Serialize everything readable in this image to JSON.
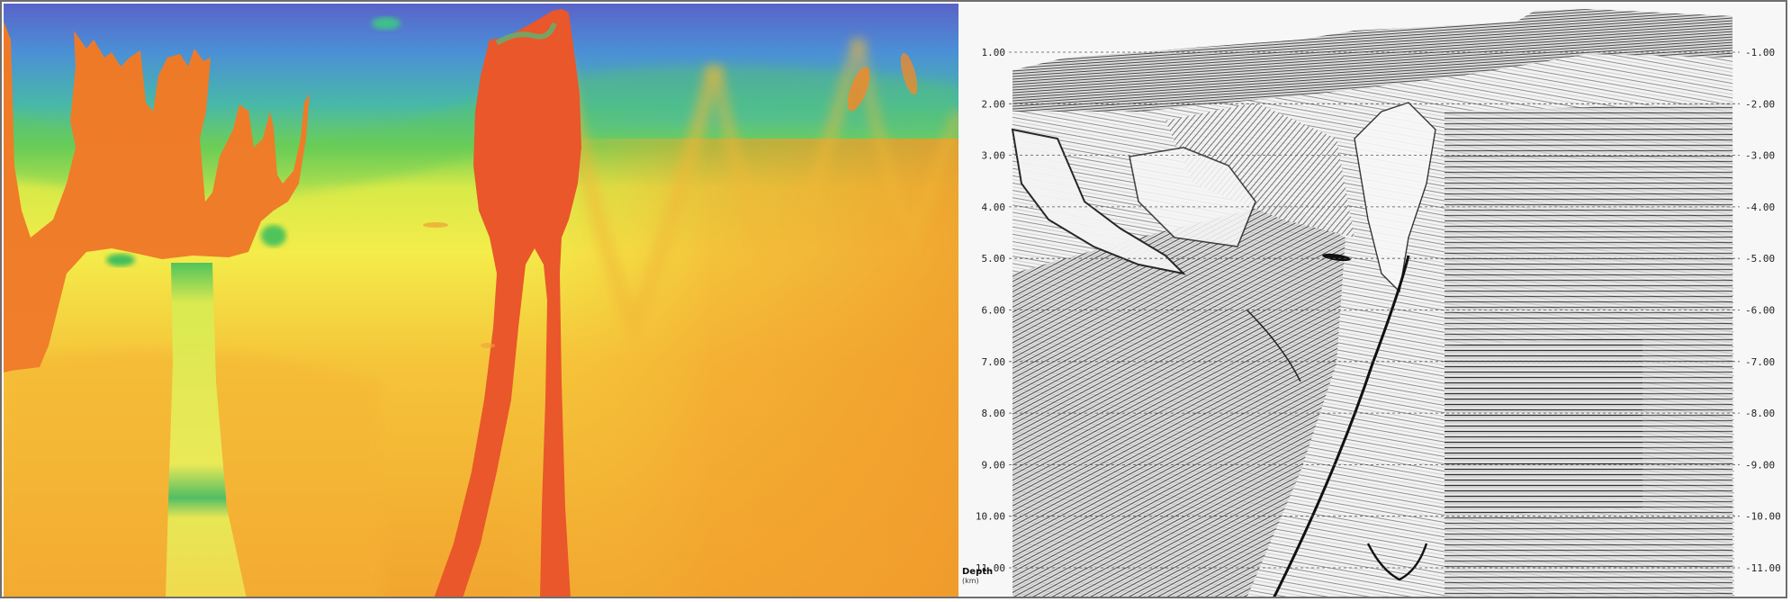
{
  "figure": {
    "left_panel": {
      "kind": "velocity-model",
      "palette": [
        "#5a63c8",
        "#4b8fd6",
        "#48b8a8",
        "#45c25a",
        "#b9e04a",
        "#f2ee46",
        "#f5c53a",
        "#f3a12e",
        "#ef7b28",
        "#e8502a"
      ]
    },
    "right_panel": {
      "kind": "seismic-depth-section",
      "depth_axis_label": "Depth",
      "depth_axis_unit": "(km)",
      "depth_ticks": [
        "1.00",
        "2.00",
        "3.00",
        "4.00",
        "5.00",
        "6.00",
        "7.00",
        "8.00",
        "9.00",
        "10.00",
        "11.00"
      ]
    }
  }
}
